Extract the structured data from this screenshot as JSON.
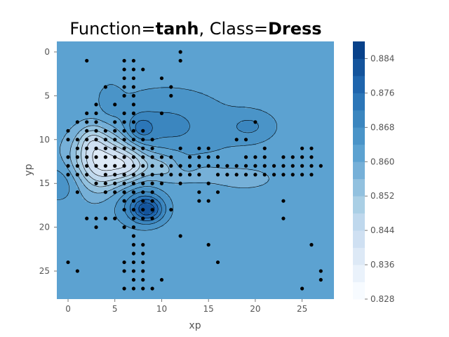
{
  "chart_data": {
    "type": "heatmap",
    "title": {
      "prefix": "Function=",
      "function": "tanh",
      "separator": ", Class=",
      "class": "Dress"
    },
    "xlabel": "xp",
    "ylabel": "yp",
    "xlim": [
      -1.2,
      28.4
    ],
    "ylim": [
      28.2,
      -1.2
    ],
    "y_inverted": true,
    "x_ticks": [
      0,
      5,
      10,
      15,
      20,
      25
    ],
    "y_ticks": [
      0,
      5,
      10,
      15,
      20,
      25
    ],
    "grid": false,
    "background_level": 0.862,
    "colormap": "Blues",
    "colorbar": {
      "min": 0.828,
      "max": 0.888,
      "levels": 15,
      "ticks": [
        0.828,
        0.836,
        0.844,
        0.852,
        0.86,
        0.868,
        0.876,
        0.884
      ],
      "tick_labels": [
        "0.828",
        "0.836",
        "0.844",
        "0.852",
        "0.860",
        "0.868",
        "0.876",
        "0.884"
      ],
      "colors": [
        "#f7fbff",
        "#eaf2fb",
        "#dde9f6",
        "#cfe0f2",
        "#bfd8ed",
        "#aacfe5",
        "#92c1df",
        "#76b0d8",
        "#5ca2d1",
        "#4a94c8",
        "#3b86bf",
        "#2c76b8",
        "#1f65ad",
        "#14549c",
        "#08418a"
      ]
    },
    "surface_features": [
      {
        "x": 3.6,
        "y": 12.5,
        "sx": 2.2,
        "sy": 2.4,
        "amp": -0.024
      },
      {
        "x": 6.5,
        "y": 13.0,
        "sx": 1.2,
        "sy": 1.5,
        "amp": -0.008
      },
      {
        "x": 2.5,
        "y": 10.0,
        "sx": 1.0,
        "sy": 1.2,
        "amp": -0.006
      },
      {
        "x": 9.0,
        "y": 12.8,
        "sx": 2.5,
        "sy": 1.3,
        "amp": -0.008
      },
      {
        "x": 13.0,
        "y": 13.8,
        "sx": 3.5,
        "sy": 1.0,
        "amp": -0.004
      },
      {
        "x": 8.5,
        "y": 18.0,
        "sx": 1.2,
        "sy": 1.0,
        "amp": 0.018
      },
      {
        "x": 7.0,
        "y": 16.5,
        "sx": 2.0,
        "sy": 2.0,
        "amp": 0.007
      },
      {
        "x": 10.5,
        "y": 8.5,
        "sx": 4.5,
        "sy": 2.8,
        "amp": 0.007
      },
      {
        "x": 7.8,
        "y": 8.8,
        "sx": 1.0,
        "sy": 1.0,
        "amp": 0.008
      },
      {
        "x": 12.5,
        "y": 13.0,
        "sx": 1.0,
        "sy": 0.8,
        "amp": 0.004
      },
      {
        "x": 19.5,
        "y": 8.5,
        "sx": 1.8,
        "sy": 1.2,
        "amp": 0.006
      },
      {
        "x": -0.5,
        "y": 14.8,
        "sx": 1.8,
        "sy": 1.6,
        "amp": 0.006
      },
      {
        "x": 19.0,
        "y": 14.5,
        "sx": 2.0,
        "sy": 0.8,
        "amp": -0.004
      },
      {
        "x": 4.5,
        "y": 5.5,
        "sx": 0.8,
        "sy": 1.2,
        "amp": 0.004
      }
    ],
    "points": [
      [
        12,
        0
      ],
      [
        2,
        1
      ],
      [
        6,
        1
      ],
      [
        7,
        1
      ],
      [
        12,
        1
      ],
      [
        6,
        2
      ],
      [
        7,
        2
      ],
      [
        8,
        2
      ],
      [
        6,
        3
      ],
      [
        7,
        3
      ],
      [
        10,
        3
      ],
      [
        4,
        4
      ],
      [
        6,
        4
      ],
      [
        7,
        4
      ],
      [
        11,
        4
      ],
      [
        6,
        5
      ],
      [
        7,
        5
      ],
      [
        11,
        5
      ],
      [
        3,
        6
      ],
      [
        5,
        6
      ],
      [
        7,
        6
      ],
      [
        2,
        7
      ],
      [
        3,
        7
      ],
      [
        6,
        7
      ],
      [
        7,
        7
      ],
      [
        10,
        7
      ],
      [
        1,
        8
      ],
      [
        2,
        8
      ],
      [
        3,
        8
      ],
      [
        5,
        8
      ],
      [
        6,
        8
      ],
      [
        7,
        8
      ],
      [
        20,
        8
      ],
      [
        0,
        9
      ],
      [
        2,
        9
      ],
      [
        3,
        9
      ],
      [
        4,
        9
      ],
      [
        5,
        9
      ],
      [
        6,
        9
      ],
      [
        7,
        9
      ],
      [
        8,
        9
      ],
      [
        0,
        10
      ],
      [
        1,
        10
      ],
      [
        2,
        10
      ],
      [
        3,
        10
      ],
      [
        4,
        10
      ],
      [
        5,
        10
      ],
      [
        6,
        10
      ],
      [
        7,
        10
      ],
      [
        8,
        10
      ],
      [
        9,
        10
      ],
      [
        18,
        10
      ],
      [
        19,
        10
      ],
      [
        1,
        11
      ],
      [
        2,
        11
      ],
      [
        3,
        11
      ],
      [
        4,
        11
      ],
      [
        5,
        11
      ],
      [
        6,
        11
      ],
      [
        7,
        11
      ],
      [
        8,
        11
      ],
      [
        9,
        11
      ],
      [
        12,
        11
      ],
      [
        14,
        11
      ],
      [
        15,
        11
      ],
      [
        21,
        11
      ],
      [
        25,
        11
      ],
      [
        26,
        11
      ],
      [
        0,
        12
      ],
      [
        1,
        12
      ],
      [
        2,
        12
      ],
      [
        3,
        12
      ],
      [
        4,
        12
      ],
      [
        5,
        12
      ],
      [
        6,
        12
      ],
      [
        7,
        12
      ],
      [
        8,
        12
      ],
      [
        9,
        12
      ],
      [
        10,
        12
      ],
      [
        11,
        12
      ],
      [
        13,
        12
      ],
      [
        14,
        12
      ],
      [
        15,
        12
      ],
      [
        16,
        12
      ],
      [
        19,
        12
      ],
      [
        20,
        12
      ],
      [
        21,
        12
      ],
      [
        23,
        12
      ],
      [
        24,
        12
      ],
      [
        25,
        12
      ],
      [
        26,
        12
      ],
      [
        0,
        13
      ],
      [
        1,
        13
      ],
      [
        2,
        13
      ],
      [
        3,
        13
      ],
      [
        4,
        13
      ],
      [
        5,
        13
      ],
      [
        6,
        13
      ],
      [
        7,
        13
      ],
      [
        8,
        13
      ],
      [
        9,
        13
      ],
      [
        10,
        13
      ],
      [
        11,
        13
      ],
      [
        12,
        13
      ],
      [
        13,
        13
      ],
      [
        14,
        13
      ],
      [
        15,
        13
      ],
      [
        16,
        13
      ],
      [
        17,
        13
      ],
      [
        18,
        13
      ],
      [
        19,
        13
      ],
      [
        20,
        13
      ],
      [
        21,
        13
      ],
      [
        22,
        13
      ],
      [
        23,
        13
      ],
      [
        24,
        13
      ],
      [
        25,
        13
      ],
      [
        26,
        13
      ],
      [
        27,
        13
      ],
      [
        0,
        14
      ],
      [
        1,
        14
      ],
      [
        2,
        14
      ],
      [
        4,
        14
      ],
      [
        5,
        14
      ],
      [
        6,
        14
      ],
      [
        7,
        14
      ],
      [
        8,
        14
      ],
      [
        9,
        14
      ],
      [
        10,
        14
      ],
      [
        11,
        14
      ],
      [
        12,
        14
      ],
      [
        13,
        14
      ],
      [
        14,
        14
      ],
      [
        16,
        14
      ],
      [
        17,
        14
      ],
      [
        18,
        14
      ],
      [
        19,
        14
      ],
      [
        20,
        14
      ],
      [
        21,
        14
      ],
      [
        22,
        14
      ],
      [
        23,
        14
      ],
      [
        24,
        14
      ],
      [
        25,
        14
      ],
      [
        26,
        14
      ],
      [
        3,
        15
      ],
      [
        4,
        15
      ],
      [
        5,
        15
      ],
      [
        6,
        15
      ],
      [
        7,
        15
      ],
      [
        8,
        15
      ],
      [
        9,
        15
      ],
      [
        10,
        15
      ],
      [
        12,
        15
      ],
      [
        15,
        15
      ],
      [
        1,
        16
      ],
      [
        4,
        16
      ],
      [
        5,
        16
      ],
      [
        6,
        16
      ],
      [
        7,
        16
      ],
      [
        8,
        16
      ],
      [
        9,
        16
      ],
      [
        14,
        16
      ],
      [
        16,
        16
      ],
      [
        6,
        17
      ],
      [
        7,
        17
      ],
      [
        8,
        17
      ],
      [
        9,
        17
      ],
      [
        14,
        17
      ],
      [
        15,
        17
      ],
      [
        23,
        17
      ],
      [
        6,
        18
      ],
      [
        7,
        18
      ],
      [
        8,
        18
      ],
      [
        9,
        18
      ],
      [
        11,
        18
      ],
      [
        2,
        19
      ],
      [
        3,
        19
      ],
      [
        4,
        19
      ],
      [
        5,
        19
      ],
      [
        7,
        19
      ],
      [
        8,
        19
      ],
      [
        9,
        19
      ],
      [
        23,
        19
      ],
      [
        3,
        20
      ],
      [
        6,
        20
      ],
      [
        7,
        20
      ],
      [
        7,
        21
      ],
      [
        12,
        21
      ],
      [
        7,
        22
      ],
      [
        8,
        22
      ],
      [
        15,
        22
      ],
      [
        26,
        22
      ],
      [
        7,
        23
      ],
      [
        8,
        23
      ],
      [
        6,
        24
      ],
      [
        7,
        24
      ],
      [
        8,
        24
      ],
      [
        16,
        24
      ],
      [
        0,
        24
      ],
      [
        1,
        25
      ],
      [
        6,
        25
      ],
      [
        7,
        25
      ],
      [
        8,
        25
      ],
      [
        27,
        25
      ],
      [
        7,
        26
      ],
      [
        8,
        26
      ],
      [
        10,
        26
      ],
      [
        27,
        26
      ],
      [
        6,
        27
      ],
      [
        7,
        27
      ],
      [
        8,
        27
      ],
      [
        9,
        27
      ],
      [
        25,
        27
      ]
    ]
  }
}
